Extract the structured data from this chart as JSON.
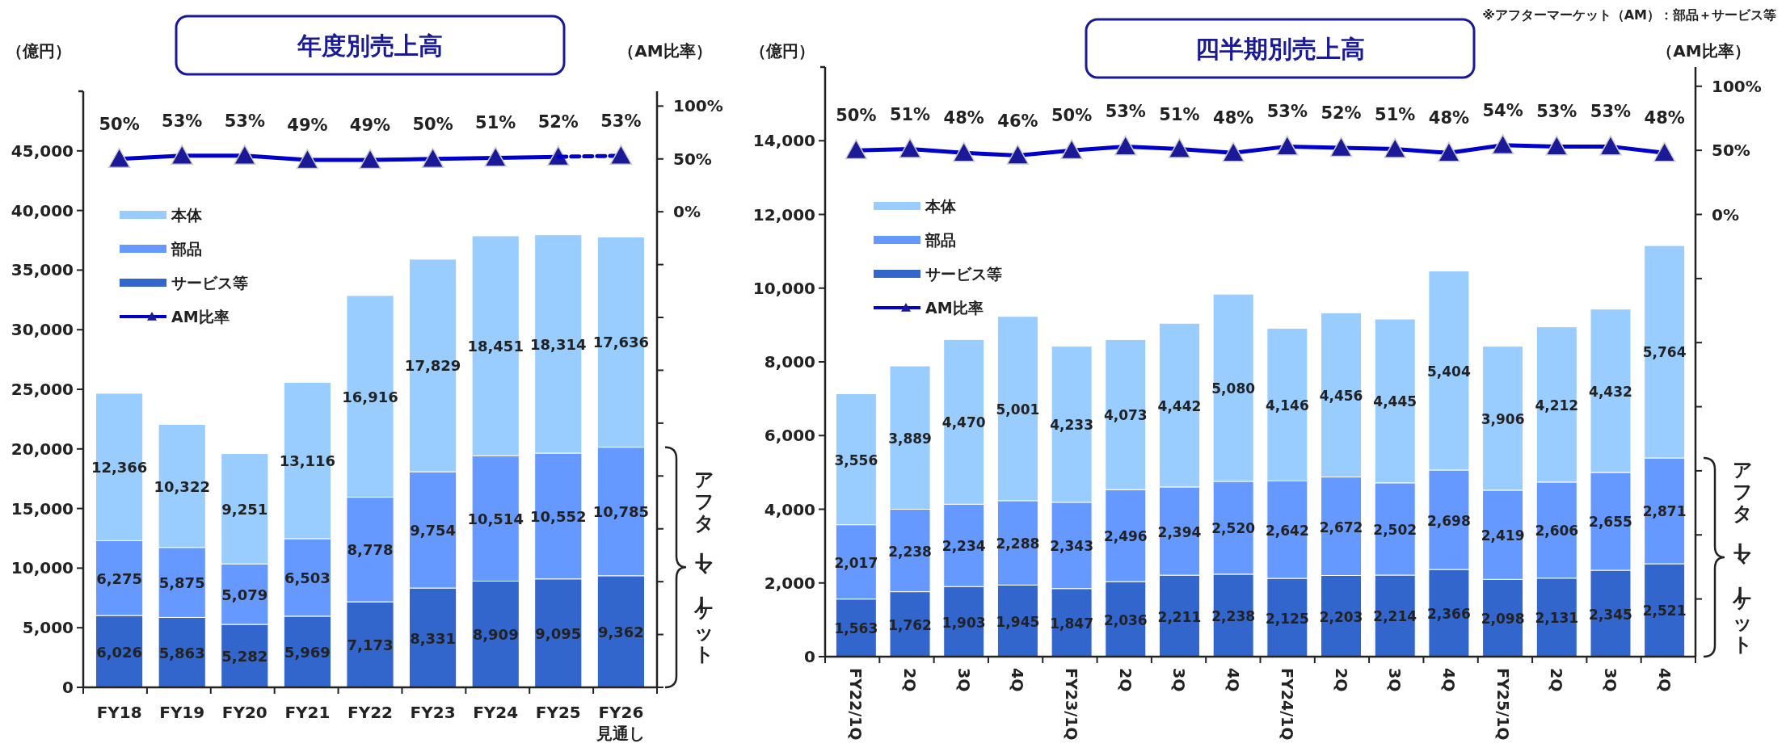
{
  "chart_data": [
    {
      "type": "bar",
      "title": "年度別売上高",
      "ylabel": "（億円）",
      "y2label": "（AM比率）",
      "stacked": true,
      "legend": "top left",
      "categories": [
        "FY18",
        "FY19",
        "FY20",
        "FY21",
        "FY22",
        "FY23",
        "FY24",
        "FY25",
        "FY26\n見通し"
      ],
      "ylim": [
        0,
        50000
      ],
      "yticks": [
        0,
        {
          "value": 5000,
          "label": "5,000"
        },
        {
          "value": 10000,
          "label": "10,000"
        },
        {
          "value": 15000,
          "label": "15,000"
        },
        {
          "value": 20000,
          "label": "20,000"
        },
        {
          "value": 25000,
          "label": "25,000"
        },
        {
          "value": 30000,
          "label": "30,000"
        },
        {
          "value": 35000,
          "label": "35,000"
        },
        {
          "value": 40000,
          "label": "40,000"
        },
        {
          "value": 45000,
          "label": "45,000"
        }
      ],
      "y2lim": [
        -450,
        114
      ],
      "y2ticks": [
        {
          "value": -450,
          "label": null
        },
        {
          "value": -400,
          "label": null
        },
        {
          "value": -350,
          "label": null
        },
        {
          "value": -300,
          "label": null
        },
        {
          "value": -250,
          "label": null
        },
        {
          "value": -200,
          "label": null
        },
        {
          "value": -150,
          "label": null
        },
        {
          "value": -100,
          "label": null
        },
        {
          "value": -50,
          "label": null
        },
        {
          "value": 0,
          "label": "0%"
        },
        {
          "value": 50,
          "label": "50%"
        },
        {
          "value": 100,
          "label": "100%"
        }
      ],
      "series": [
        {
          "name": "サービス等",
          "type": "bar",
          "color": "#3366cc",
          "values": [
            6026,
            5863,
            5282,
            5969,
            7173,
            8331,
            8909,
            9095,
            9362
          ],
          "value_labels": [
            "6,026",
            "5,863",
            "5,282",
            "5,969",
            "7,173",
            "8,331",
            "8,909",
            "9,095",
            "9,362"
          ]
        },
        {
          "name": "部品",
          "type": "bar",
          "color": "#6699ff",
          "values": [
            6275,
            5875,
            5079,
            6503,
            8778,
            9754,
            10514,
            10552,
            10785
          ],
          "value_labels": [
            "6,275",
            "5,875",
            "5,079",
            "6,503",
            "8,778",
            "9,754",
            "10,514",
            "10,552",
            "10,785"
          ]
        },
        {
          "name": "本体",
          "type": "bar",
          "color": "#99ccff",
          "values": [
            12366,
            10322,
            9251,
            13116,
            16916,
            17829,
            18451,
            18314,
            17636
          ],
          "value_labels": [
            "12,366",
            "10,322",
            "9,251",
            "13,116",
            "16,916",
            "17,829",
            "18,451",
            "18,314",
            "17,636"
          ]
        },
        {
          "name": "AM比率",
          "type": "line",
          "axis": "y2",
          "color": "#0000cc",
          "marker": "triangle",
          "line_style": "solid",
          "values": [
            50,
            53,
            53,
            49,
            49,
            50,
            51,
            52,
            null
          ],
          "value_labels": [
            "50%",
            "53%",
            "53%",
            "49%",
            "49%",
            "50%",
            "51%",
            "52%",
            null
          ]
        },
        {
          "type": "line",
          "axis": "y2",
          "color": "#0000cc",
          "marker": "triangle",
          "line_style": "dashed",
          "values": [
            null,
            null,
            null,
            null,
            null,
            null,
            null,
            52,
            53
          ],
          "value_labels": [
            null,
            null,
            null,
            null,
            null,
            null,
            null,
            null,
            "53%"
          ]
        }
      ],
      "annotations": [
        "アフターマーケット"
      ]
    },
    {
      "type": "bar",
      "title": "四半期別売上高",
      "ylabel": "（億円）",
      "y2label": "（AM比率）",
      "stacked": true,
      "legend": "top left",
      "categories": [
        "FY22/1Q",
        "2Q",
        "3Q",
        "4Q",
        "FY23/1Q",
        "2Q",
        "3Q",
        "4Q",
        "FY24/1Q",
        "2Q",
        "3Q",
        "4Q",
        "FY25/1Q",
        "2Q",
        "3Q",
        "4Q"
      ],
      "ylim": [
        0,
        16000
      ],
      "yticks": [
        0,
        {
          "value": 2000,
          "label": "2,000"
        },
        {
          "value": 4000,
          "label": "4,000"
        },
        {
          "value": 6000,
          "label": "6,000"
        },
        {
          "value": 8000,
          "label": "8,000"
        },
        {
          "value": 10000,
          "label": "10,000"
        },
        {
          "value": 12000,
          "label": "12,000"
        },
        {
          "value": 14000,
          "label": "14,000"
        }
      ],
      "y2lim": [
        -345,
        115
      ],
      "y2ticks": [
        {
          "value": -300,
          "label": null
        },
        {
          "value": -250,
          "label": null
        },
        {
          "value": -200,
          "label": null
        },
        {
          "value": -150,
          "label": null
        },
        {
          "value": -100,
          "label": null
        },
        {
          "value": -50,
          "label": null
        },
        {
          "value": 0,
          "label": "0%"
        },
        {
          "value": 50,
          "label": "50%"
        },
        {
          "value": 100,
          "label": "100%"
        }
      ],
      "series": [
        {
          "name": "サービス等",
          "type": "bar",
          "color": "#3366cc",
          "values": [
            1563,
            1762,
            1903,
            1945,
            1847,
            2036,
            2211,
            2238,
            2125,
            2203,
            2214,
            2366,
            2098,
            2131,
            2345,
            2521
          ],
          "value_labels": [
            "1,563",
            "1,762",
            "1,903",
            "1,945",
            "1,847",
            "2,036",
            "2,211",
            "2,238",
            "2,125",
            "2,203",
            "2,214",
            "2,366",
            "2,098",
            "2,131",
            "2,345",
            "2,521"
          ]
        },
        {
          "name": "部品",
          "type": "bar",
          "color": "#6699ff",
          "values": [
            2017,
            2238,
            2234,
            2288,
            2343,
            2496,
            2394,
            2520,
            2642,
            2672,
            2502,
            2698,
            2419,
            2606,
            2655,
            2871
          ],
          "value_labels": [
            "2,017",
            "2,238",
            "2,234",
            "2,288",
            "2,343",
            "2,496",
            "2,394",
            "2,520",
            "2,642",
            "2,672",
            "2,502",
            "2,698",
            "2,419",
            "2,606",
            "2,655",
            "2,871"
          ]
        },
        {
          "name": "本体",
          "type": "bar",
          "color": "#99ccff",
          "values": [
            3556,
            3889,
            4470,
            5001,
            4233,
            4073,
            4442,
            5080,
            4146,
            4456,
            4445,
            5404,
            3906,
            4212,
            4432,
            5764
          ],
          "value_labels": [
            "3,556",
            "3,889",
            "4,470",
            "5,001",
            "4,233",
            "4,073",
            "4,442",
            "5,080",
            "4,146",
            "4,456",
            "4,445",
            "5,404",
            "3,906",
            "4,212",
            "4,432",
            "5,764"
          ]
        },
        {
          "name": "AM比率",
          "type": "line",
          "axis": "y2",
          "color": "#0000cc",
          "marker": "triangle",
          "line_style": "solid",
          "values": [
            50,
            51,
            48,
            46,
            50,
            53,
            51,
            48,
            53,
            52,
            51,
            48,
            54,
            53,
            53,
            48
          ],
          "value_labels": [
            "50%",
            "51%",
            "48%",
            "46%",
            "50%",
            "53%",
            "51%",
            "48%",
            "53%",
            "52%",
            "51%",
            "48%",
            "54%",
            "53%",
            "53%",
            "48%"
          ]
        }
      ],
      "annotations": [
        "アフターマーケット",
        "※アフターマーケット（AM）：部品＋サービス等"
      ]
    }
  ]
}
